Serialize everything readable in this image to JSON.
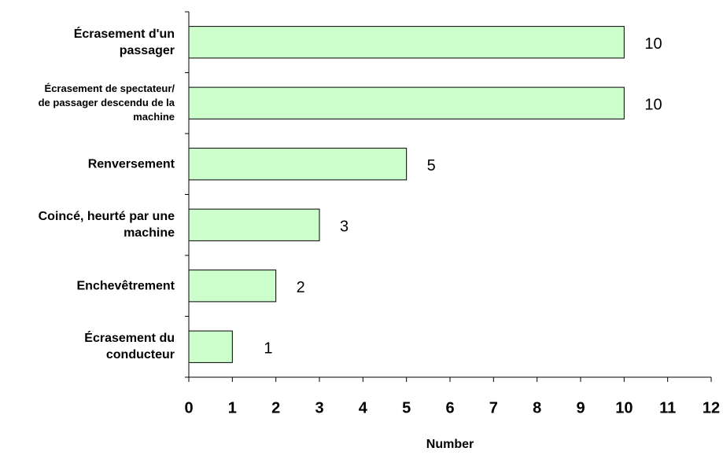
{
  "chart_data": {
    "type": "barh",
    "categories": [
      "Écrasement d'un passager",
      "Écrasement de spectateur/ de passager descendu de la machine",
      "Renversement",
      "Coincé, heurté par une machine",
      "Enchevêtrement",
      "Écrasement du conducteur"
    ],
    "values": [
      10,
      10,
      5,
      3,
      2,
      1
    ],
    "color": "#ccffcc",
    "xlabel": "Number",
    "xlim": [
      0,
      12
    ],
    "xticks": [
      0,
      1,
      2,
      3,
      4,
      5,
      6,
      7,
      8,
      9,
      10,
      11,
      12
    ]
  }
}
